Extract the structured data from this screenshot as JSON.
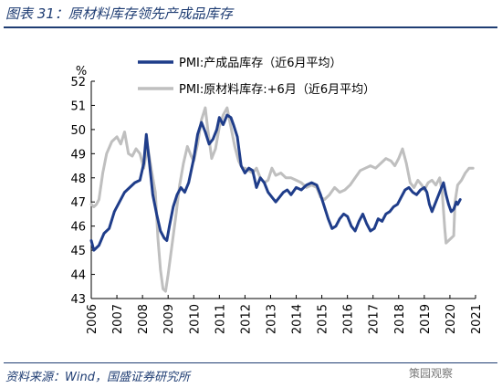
{
  "figure_title": "图表 31：原材料库存领先产成品库存",
  "source_note": "资料来源：Wind，国盛证券研究所",
  "watermark": "策园观察",
  "colors": {
    "series1": "#1f3d8a",
    "series2": "#bfbfbf",
    "title": "#1f3d73"
  },
  "chart_data": {
    "type": "line",
    "title": "",
    "ylabel": "%",
    "xlabel": "",
    "ylim": [
      43,
      52
    ],
    "yticks": [
      43,
      44,
      45,
      46,
      47,
      48,
      49,
      50,
      51,
      52
    ],
    "xlim": [
      2006,
      2021
    ],
    "xticks": [
      "2006",
      "2007",
      "2008",
      "2009",
      "2010",
      "2011",
      "2012",
      "2013",
      "2014",
      "2015",
      "2016",
      "2017",
      "2018",
      "2019",
      "2020",
      "2021"
    ],
    "grid": false,
    "legend": "top",
    "series": [
      {
        "name": "PMI:产成品库存（近6月平均）",
        "color": "#1f3d8a",
        "points": [
          [
            2006.0,
            45.4
          ],
          [
            2006.1,
            45.0
          ],
          [
            2006.3,
            45.2
          ],
          [
            2006.5,
            45.7
          ],
          [
            2006.7,
            45.9
          ],
          [
            2006.9,
            46.6
          ],
          [
            2007.1,
            47.0
          ],
          [
            2007.3,
            47.4
          ],
          [
            2007.5,
            47.6
          ],
          [
            2007.7,
            47.8
          ],
          [
            2007.9,
            47.9
          ],
          [
            2008.05,
            48.6
          ],
          [
            2008.15,
            49.8
          ],
          [
            2008.25,
            48.8
          ],
          [
            2008.4,
            47.3
          ],
          [
            2008.55,
            46.5
          ],
          [
            2008.7,
            45.8
          ],
          [
            2008.85,
            45.5
          ],
          [
            2008.95,
            45.4
          ],
          [
            2009.05,
            46.0
          ],
          [
            2009.2,
            46.8
          ],
          [
            2009.35,
            47.3
          ],
          [
            2009.5,
            47.6
          ],
          [
            2009.65,
            47.4
          ],
          [
            2009.8,
            47.8
          ],
          [
            2010.0,
            48.8
          ],
          [
            2010.15,
            49.8
          ],
          [
            2010.3,
            50.3
          ],
          [
            2010.45,
            49.9
          ],
          [
            2010.6,
            49.4
          ],
          [
            2010.75,
            49.6
          ],
          [
            2010.9,
            50.0
          ],
          [
            2011.0,
            50.5
          ],
          [
            2011.15,
            50.2
          ],
          [
            2011.3,
            50.6
          ],
          [
            2011.45,
            50.5
          ],
          [
            2011.55,
            50.2
          ],
          [
            2011.7,
            49.7
          ],
          [
            2011.85,
            48.5
          ],
          [
            2012.0,
            48.2
          ],
          [
            2012.15,
            48.4
          ],
          [
            2012.3,
            48.3
          ],
          [
            2012.45,
            47.6
          ],
          [
            2012.6,
            48.0
          ],
          [
            2012.75,
            47.8
          ],
          [
            2012.9,
            47.4
          ],
          [
            2013.05,
            47.2
          ],
          [
            2013.2,
            47.0
          ],
          [
            2013.35,
            47.2
          ],
          [
            2013.5,
            47.4
          ],
          [
            2013.65,
            47.5
          ],
          [
            2013.8,
            47.3
          ],
          [
            2014.0,
            47.6
          ],
          [
            2014.2,
            47.5
          ],
          [
            2014.4,
            47.7
          ],
          [
            2014.6,
            47.8
          ],
          [
            2014.8,
            47.7
          ],
          [
            2014.95,
            47.3
          ],
          [
            2015.1,
            46.8
          ],
          [
            2015.25,
            46.3
          ],
          [
            2015.4,
            45.9
          ],
          [
            2015.55,
            46.0
          ],
          [
            2015.7,
            46.3
          ],
          [
            2015.85,
            46.5
          ],
          [
            2016.0,
            46.4
          ],
          [
            2016.15,
            46.0
          ],
          [
            2016.3,
            45.8
          ],
          [
            2016.45,
            46.2
          ],
          [
            2016.6,
            46.5
          ],
          [
            2016.75,
            46.1
          ],
          [
            2016.9,
            45.8
          ],
          [
            2017.05,
            45.9
          ],
          [
            2017.2,
            46.3
          ],
          [
            2017.35,
            46.2
          ],
          [
            2017.5,
            46.5
          ],
          [
            2017.65,
            46.6
          ],
          [
            2017.8,
            46.8
          ],
          [
            2017.95,
            46.9
          ],
          [
            2018.1,
            47.2
          ],
          [
            2018.25,
            47.5
          ],
          [
            2018.4,
            47.6
          ],
          [
            2018.55,
            47.4
          ],
          [
            2018.7,
            47.3
          ],
          [
            2018.85,
            47.5
          ],
          [
            2019.0,
            47.6
          ],
          [
            2019.1,
            47.4
          ],
          [
            2019.2,
            46.9
          ],
          [
            2019.3,
            46.6
          ],
          [
            2019.45,
            47.0
          ],
          [
            2019.6,
            47.4
          ],
          [
            2019.75,
            47.8
          ],
          [
            2019.85,
            47.3
          ],
          [
            2019.95,
            46.9
          ],
          [
            2020.05,
            46.6
          ],
          [
            2020.15,
            46.7
          ],
          [
            2020.25,
            47.0
          ],
          [
            2020.3,
            46.9
          ],
          [
            2020.4,
            47.1
          ]
        ]
      },
      {
        "name": "PMI:原材料库存:+6月（近6月平均）",
        "color": "#bfbfbf",
        "points": [
          [
            2006.0,
            46.9
          ],
          [
            2006.1,
            46.8
          ],
          [
            2006.2,
            46.9
          ],
          [
            2006.3,
            47.1
          ],
          [
            2006.45,
            48.2
          ],
          [
            2006.6,
            49.0
          ],
          [
            2006.8,
            49.5
          ],
          [
            2007.0,
            49.7
          ],
          [
            2007.15,
            49.4
          ],
          [
            2007.3,
            49.9
          ],
          [
            2007.45,
            49.0
          ],
          [
            2007.6,
            48.9
          ],
          [
            2007.75,
            49.2
          ],
          [
            2007.9,
            49.0
          ],
          [
            2008.05,
            48.4
          ],
          [
            2008.2,
            49.3
          ],
          [
            2008.35,
            48.3
          ],
          [
            2008.5,
            47.4
          ],
          [
            2008.6,
            45.5
          ],
          [
            2008.7,
            44.2
          ],
          [
            2008.8,
            43.4
          ],
          [
            2008.9,
            43.3
          ],
          [
            2009.0,
            44.0
          ],
          [
            2009.15,
            45.2
          ],
          [
            2009.3,
            46.4
          ],
          [
            2009.45,
            47.7
          ],
          [
            2009.6,
            48.6
          ],
          [
            2009.75,
            49.3
          ],
          [
            2009.9,
            48.9
          ],
          [
            2010.0,
            48.7
          ],
          [
            2010.15,
            49.4
          ],
          [
            2010.3,
            50.4
          ],
          [
            2010.45,
            50.9
          ],
          [
            2010.55,
            50.0
          ],
          [
            2010.7,
            48.8
          ],
          [
            2010.85,
            49.2
          ],
          [
            2011.0,
            50.1
          ],
          [
            2011.15,
            50.6
          ],
          [
            2011.3,
            50.9
          ],
          [
            2011.45,
            50.1
          ],
          [
            2011.6,
            49.3
          ],
          [
            2011.75,
            48.7
          ],
          [
            2011.9,
            48.4
          ],
          [
            2012.0,
            48.4
          ],
          [
            2012.15,
            48.3
          ],
          [
            2012.3,
            48.2
          ],
          [
            2012.45,
            48.4
          ],
          [
            2012.6,
            48.0
          ],
          [
            2012.75,
            47.8
          ],
          [
            2012.9,
            47.9
          ],
          [
            2013.05,
            48.4
          ],
          [
            2013.2,
            48.1
          ],
          [
            2013.4,
            48.2
          ],
          [
            2013.6,
            48.0
          ],
          [
            2013.8,
            48.0
          ],
          [
            2014.0,
            47.9
          ],
          [
            2014.2,
            47.8
          ],
          [
            2014.4,
            47.6
          ],
          [
            2014.6,
            47.7
          ],
          [
            2014.8,
            47.6
          ],
          [
            2014.95,
            47.2
          ],
          [
            2015.1,
            47.1
          ],
          [
            2015.3,
            47.3
          ],
          [
            2015.5,
            47.6
          ],
          [
            2015.7,
            47.4
          ],
          [
            2015.9,
            47.5
          ],
          [
            2016.1,
            47.7
          ],
          [
            2016.3,
            48.0
          ],
          [
            2016.5,
            48.3
          ],
          [
            2016.7,
            48.4
          ],
          [
            2016.9,
            48.5
          ],
          [
            2017.1,
            48.4
          ],
          [
            2017.3,
            48.6
          ],
          [
            2017.5,
            48.8
          ],
          [
            2017.7,
            48.7
          ],
          [
            2017.85,
            48.5
          ],
          [
            2018.0,
            48.8
          ],
          [
            2018.15,
            49.2
          ],
          [
            2018.3,
            48.6
          ],
          [
            2018.45,
            47.8
          ],
          [
            2018.6,
            47.6
          ],
          [
            2018.75,
            47.9
          ],
          [
            2018.9,
            47.7
          ],
          [
            2019.0,
            47.5
          ],
          [
            2019.15,
            47.8
          ],
          [
            2019.3,
            47.9
          ],
          [
            2019.45,
            47.7
          ],
          [
            2019.6,
            48.0
          ],
          [
            2019.7,
            47.4
          ],
          [
            2019.8,
            45.9
          ],
          [
            2019.85,
            45.3
          ],
          [
            2019.95,
            45.4
          ],
          [
            2020.05,
            45.5
          ],
          [
            2020.15,
            45.6
          ],
          [
            2020.2,
            47.0
          ],
          [
            2020.3,
            47.7
          ],
          [
            2020.45,
            47.9
          ],
          [
            2020.6,
            48.2
          ],
          [
            2020.75,
            48.4
          ],
          [
            2020.9,
            48.4
          ]
        ]
      }
    ]
  }
}
